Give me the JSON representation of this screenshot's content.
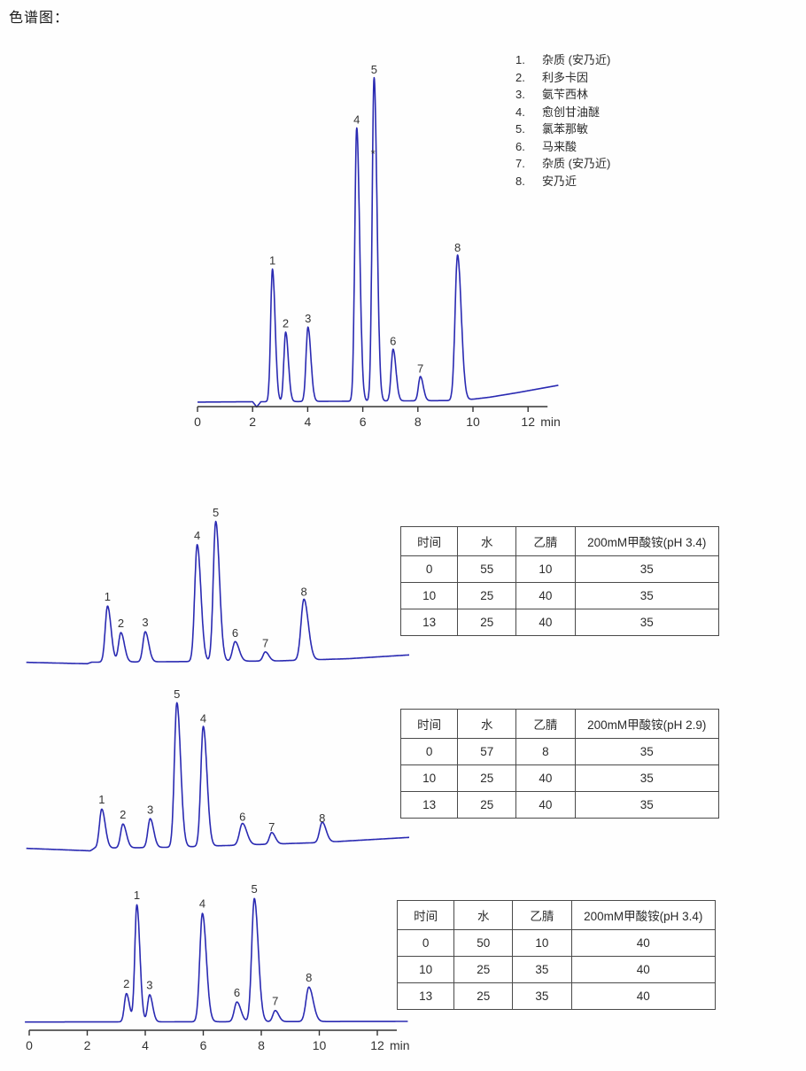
{
  "page": {
    "title": "色谱图："
  },
  "colors": {
    "trace": "#2a2ab2",
    "text": "#333333",
    "marker": "#d63c3c",
    "table_border": "#4a4a4a"
  },
  "legend": {
    "items": [
      {
        "num": "1.",
        "name": "杂质 (安乃近)"
      },
      {
        "num": "2.",
        "name": "利多卡因"
      },
      {
        "num": "3.",
        "name": "氨苄西林"
      },
      {
        "num": "4.",
        "name": "愈创甘油醚"
      },
      {
        "num": "5.",
        "name": "氯苯那敏"
      },
      {
        "num": "6.",
        "name": "马来酸"
      },
      {
        "num": "7.",
        "name": "杂质 (安乃近)"
      },
      {
        "num": "8.",
        "name": "安乃近"
      }
    ]
  },
  "chart_data": [
    {
      "type": "line",
      "id": "main-chromatogram",
      "title": "",
      "xlabel": "min",
      "ylabel": "",
      "y_unit": "relative",
      "x_ticks": [
        0,
        2,
        4,
        6,
        8,
        10,
        12
      ],
      "x_range": [
        0,
        13.1
      ],
      "peaks": [
        {
          "label": "1",
          "t": 2.72,
          "h": 0.41,
          "w": 0.065
        },
        {
          "label": "2",
          "t": 3.2,
          "h": 0.215,
          "w": 0.065
        },
        {
          "label": "3",
          "t": 4.01,
          "h": 0.23,
          "w": 0.07
        },
        {
          "label": "4",
          "t": 5.78,
          "h": 0.845,
          "w": 0.07
        },
        {
          "label": "5",
          "t": 6.41,
          "h": 1.0,
          "w": 0.07
        },
        {
          "label": "6",
          "t": 7.1,
          "h": 0.16,
          "w": 0.07
        },
        {
          "label": "7",
          "t": 8.09,
          "h": 0.075,
          "w": 0.07
        },
        {
          "label": "8",
          "t": 9.44,
          "h": 0.45,
          "w": 0.09
        }
      ],
      "baseline": [
        [
          0,
          0.003
        ],
        [
          2.0,
          0.004
        ],
        [
          2.15,
          -0.012
        ],
        [
          2.3,
          0.004
        ],
        [
          9.6,
          0.008
        ],
        [
          10.6,
          0.018
        ],
        [
          11.6,
          0.032
        ],
        [
          13.1,
          0.055
        ]
      ],
      "marker": {
        "t": 6.37,
        "h": 0.77,
        "symbol": "*"
      }
    },
    {
      "type": "line",
      "id": "gradient-chromatogram-1",
      "title": "",
      "xlabel": "",
      "y_unit": "relative",
      "x_range": [
        -0.1,
        13.1
      ],
      "peaks": [
        {
          "label": "1",
          "t": 2.7,
          "h": 0.4,
          "w": 0.08
        },
        {
          "label": "2",
          "t": 3.16,
          "h": 0.21,
          "w": 0.08
        },
        {
          "label": "3",
          "t": 4.0,
          "h": 0.215,
          "w": 0.08
        },
        {
          "label": "4",
          "t": 5.79,
          "h": 0.835,
          "w": 0.085
        },
        {
          "label": "5",
          "t": 6.43,
          "h": 1.0,
          "w": 0.085
        },
        {
          "label": "6",
          "t": 7.1,
          "h": 0.14,
          "w": 0.09
        },
        {
          "label": "7",
          "t": 8.14,
          "h": 0.065,
          "w": 0.08
        },
        {
          "label": "8",
          "t": 9.47,
          "h": 0.435,
          "w": 0.1
        }
      ],
      "baseline": [
        [
          -0.1,
          0.002
        ],
        [
          2.0,
          -0.008
        ],
        [
          2.15,
          0.003
        ],
        [
          8.5,
          0.012
        ],
        [
          11,
          0.028
        ],
        [
          13.1,
          0.055
        ]
      ]
    },
    {
      "type": "line",
      "id": "gradient-chromatogram-2",
      "title": "",
      "xlabel": "",
      "y_unit": "relative",
      "x_range": [
        -0.1,
        13.1
      ],
      "peaks": [
        {
          "label": "1",
          "t": 2.5,
          "h": 0.27,
          "w": 0.08
        },
        {
          "label": "2",
          "t": 3.23,
          "h": 0.165,
          "w": 0.08
        },
        {
          "label": "3",
          "t": 4.17,
          "h": 0.2,
          "w": 0.08
        },
        {
          "label": "5",
          "t": 5.09,
          "h": 1.0,
          "w": 0.085
        },
        {
          "label": "4",
          "t": 6.0,
          "h": 0.83,
          "w": 0.085
        },
        {
          "label": "6",
          "t": 7.35,
          "h": 0.15,
          "w": 0.1
        },
        {
          "label": "7",
          "t": 8.36,
          "h": 0.08,
          "w": 0.08
        },
        {
          "label": "8",
          "t": 10.1,
          "h": 0.14,
          "w": 0.09
        }
      ],
      "baseline": [
        [
          -0.1,
          0.002
        ],
        [
          2.1,
          -0.015
        ],
        [
          2.25,
          0.003
        ],
        [
          5,
          0.01
        ],
        [
          10,
          0.042
        ],
        [
          13.1,
          0.078
        ]
      ]
    },
    {
      "type": "line",
      "id": "gradient-chromatogram-3",
      "title": "",
      "xlabel": "min",
      "y_unit": "relative",
      "x_ticks": [
        0,
        2,
        4,
        6,
        8,
        10,
        12
      ],
      "x_range": [
        -0.15,
        13.05
      ],
      "peaks": [
        {
          "label": "2",
          "t": 3.35,
          "h": 0.23,
          "w": 0.07
        },
        {
          "label": "1",
          "t": 3.71,
          "h": 0.95,
          "w": 0.07
        },
        {
          "label": "3",
          "t": 4.15,
          "h": 0.22,
          "w": 0.07
        },
        {
          "label": "4",
          "t": 5.97,
          "h": 0.88,
          "w": 0.09
        },
        {
          "label": "6",
          "t": 7.16,
          "h": 0.16,
          "w": 0.09
        },
        {
          "label": "5",
          "t": 7.76,
          "h": 1.0,
          "w": 0.09
        },
        {
          "label": "7",
          "t": 8.48,
          "h": 0.09,
          "w": 0.08
        },
        {
          "label": "8",
          "t": 9.64,
          "h": 0.28,
          "w": 0.1
        }
      ],
      "baseline": [
        [
          -0.15,
          0.002
        ],
        [
          13.05,
          0.007
        ]
      ]
    }
  ],
  "tables": [
    {
      "headers": [
        "时间",
        "水",
        "乙腈",
        "200mM甲酸铵(pH 3.4)"
      ],
      "rows": [
        [
          "0",
          "55",
          "10",
          "35"
        ],
        [
          "10",
          "25",
          "40",
          "35"
        ],
        [
          "13",
          "25",
          "40",
          "35"
        ]
      ]
    },
    {
      "headers": [
        "时间",
        "水",
        "乙腈",
        "200mM甲酸铵(pH 2.9)"
      ],
      "rows": [
        [
          "0",
          "57",
          "8",
          "35"
        ],
        [
          "10",
          "25",
          "40",
          "35"
        ],
        [
          "13",
          "25",
          "40",
          "35"
        ]
      ]
    },
    {
      "headers": [
        "时间",
        "水",
        "乙腈",
        "200mM甲酸铵(pH 3.4)"
      ],
      "rows": [
        [
          "0",
          "50",
          "10",
          "40"
        ],
        [
          "10",
          "25",
          "35",
          "40"
        ],
        [
          "13",
          "25",
          "35",
          "40"
        ]
      ]
    }
  ]
}
